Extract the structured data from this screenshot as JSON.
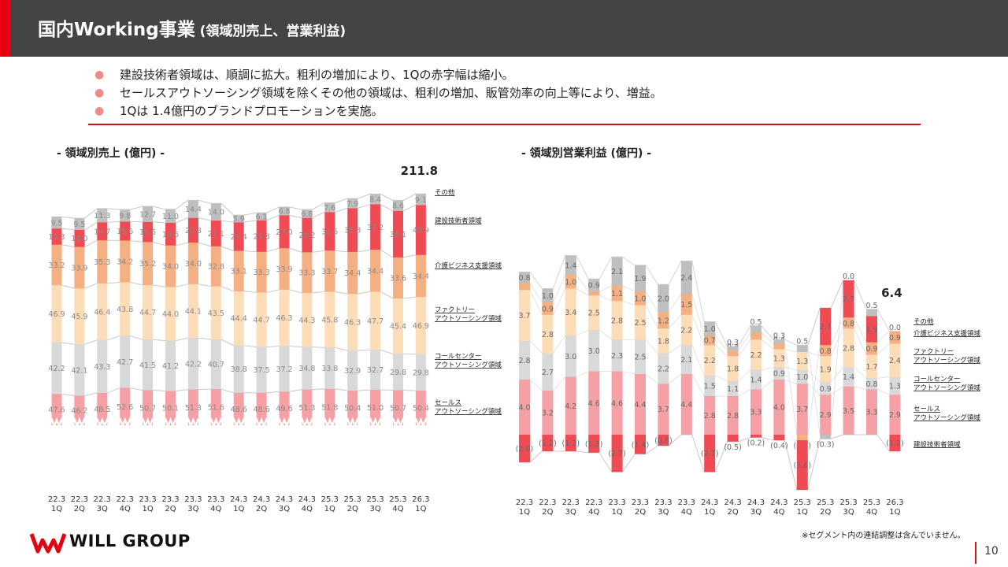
{
  "header": {
    "title_main": "国内Working事業",
    "title_sub": " (領域別売上、営業利益)"
  },
  "bullets": [
    "建設技術者領域は、順調に拡大。粗利の増加により、1Qの赤字幅は縮小。",
    "セールスアウトソーシング領域を除くその他の領域は、粗利の増加、販管効率の向上等により、増益。",
    "1Qは 1.4億円のブランドプロモーションを実施。"
  ],
  "colors": {
    "header_bg": "#444444",
    "accent": "#e60012",
    "sales": "#f4a0a4",
    "callcenter": "#d9d9d9",
    "factory": "#fddcb8",
    "care": "#f4b082",
    "construction": "#ee4b55",
    "other": "#bfbfbf"
  },
  "footer": {
    "logo_text": "WILL GROUP",
    "footnote": "※セグメント内の連結調整は含んでいません。",
    "page_number": "10"
  },
  "chart_data": [
    {
      "type": "bar",
      "stacked": true,
      "title": "- 領域別売上 (億円) -",
      "categories": [
        "22.3 1Q",
        "22.3 2Q",
        "22.3 3Q",
        "22.3 4Q",
        "23.3 1Q",
        "23.3 2Q",
        "23.3 3Q",
        "23.3 4Q",
        "24.3 1Q",
        "24.3 2Q",
        "24.3 3Q",
        "24.3 4Q",
        "25.3 1Q",
        "25.3 2Q",
        "25.3 3Q",
        "25.3 4Q",
        "26.3 1Q"
      ],
      "series": [
        {
          "name": "セールス アウトソーシング領域",
          "values": [
            47.6,
            46.2,
            48.5,
            52.6,
            50.7,
            50.1,
            51.3,
            51.6,
            48.6,
            48.6,
            49.6,
            51.3,
            51.8,
            50.4,
            51.0,
            50.7,
            50.4
          ]
        },
        {
          "name": "コールセンター アウトソーシング領域",
          "values": [
            42.2,
            42.1,
            43.3,
            42.7,
            41.5,
            41.2,
            42.2,
            40.7,
            38.8,
            37.5,
            37.2,
            34.8,
            33.8,
            32.9,
            32.7,
            29.8,
            29.8
          ]
        },
        {
          "name": "ファクトリー アウトソーシング領域",
          "values": [
            46.9,
            45.9,
            46.4,
            43.8,
            44.7,
            44.0,
            44.1,
            43.5,
            44.4,
            44.7,
            46.3,
            44.3,
            45.8,
            46.3,
            47.7,
            45.4,
            46.9
          ]
        },
        {
          "name": "介護ビジネス支援領域",
          "values": [
            33.2,
            33.9,
            35.3,
            34.2,
            35.2,
            34.0,
            34.0,
            32.8,
            33.1,
            33.3,
            33.9,
            33.3,
            33.7,
            34.4,
            34.4,
            33.6,
            34.4
          ]
        },
        {
          "name": "建設技術者領域",
          "values": [
            13.3,
            14.0,
            14.7,
            15.6,
            16.5,
            18.6,
            20.3,
            21.1,
            23.4,
            25.8,
            27.0,
            28.2,
            31.5,
            35.8,
            37.2,
            38.1,
            40.9
          ]
        },
        {
          "name": "その他",
          "values": [
            9.5,
            9.5,
            11.3,
            9.8,
            12.7,
            11.0,
            14.4,
            14.0,
            5.9,
            6.1,
            6.8,
            6.8,
            7.6,
            7.9,
            8.4,
            8.6,
            9.1
          ]
        }
      ],
      "annotations": [
        {
          "text": "211.8"
        }
      ]
    },
    {
      "type": "bar",
      "stacked": true,
      "title": "- 領域別営業利益 (億円) -",
      "categories": [
        "22.3 1Q",
        "22.3 2Q",
        "22.3 3Q",
        "22.3 4Q",
        "23.3 1Q",
        "23.3 2Q",
        "23.3 3Q",
        "23.3 4Q",
        "24.3 1Q",
        "24.3 2Q",
        "24.3 3Q",
        "24.3 4Q",
        "25.3 1Q",
        "25.3 2Q",
        "25.3 3Q",
        "25.3 4Q",
        "26.3 1Q"
      ],
      "series": [
        {
          "name": "セールス アウトソーシング領域",
          "values": [
            4.0,
            3.2,
            4.2,
            4.6,
            4.6,
            4.4,
            3.7,
            4.4,
            2.8,
            2.8,
            3.3,
            4.0,
            3.7,
            2.9,
            3.5,
            3.3,
            2.9
          ]
        },
        {
          "name": "コールセンター アウトソーシング領域",
          "values": [
            2.8,
            2.7,
            3.0,
            3.0,
            2.3,
            2.5,
            2.2,
            2.1,
            1.5,
            1.1,
            1.4,
            0.9,
            1.0,
            0.9,
            1.4,
            0.8,
            1.3
          ]
        },
        {
          "name": "ファクトリー アウトソーシング領域",
          "values": [
            3.7,
            2.8,
            3.4,
            2.5,
            2.8,
            2.5,
            1.8,
            2.2,
            2.2,
            1.8,
            2.2,
            1.3,
            1.3,
            1.9,
            2.8,
            1.7,
            2.4
          ]
        },
        {
          "name": "介護ビジネス支援領域",
          "values": [
            0.5,
            0.9,
            1.0,
            0.3,
            1.1,
            1.0,
            1.2,
            1.5,
            0.7,
            0.4,
            0.5,
            0.4,
            -0.4,
            0.8,
            0.8,
            0.9,
            0.9
          ]
        },
        {
          "name": "建設技術者領域",
          "values": [
            -2.0,
            -1.2,
            -1.2,
            -1.3,
            -2.7,
            -1.4,
            -0.8,
            0.0,
            -2.7,
            -0.5,
            -0.2,
            -0.4,
            -3.6,
            2.7,
            2.7,
            1.9,
            -1.2
          ]
        },
        {
          "name": "その他",
          "values": [
            0.8,
            1.0,
            1.4,
            0.9,
            2.1,
            1.9,
            2.0,
            2.4,
            1.0,
            0.3,
            0.5,
            0.3,
            0.5,
            -0.3,
            0.0,
            0.5,
            0.0
          ]
        }
      ],
      "annotations": [
        {
          "text": "6.4"
        }
      ]
    }
  ]
}
